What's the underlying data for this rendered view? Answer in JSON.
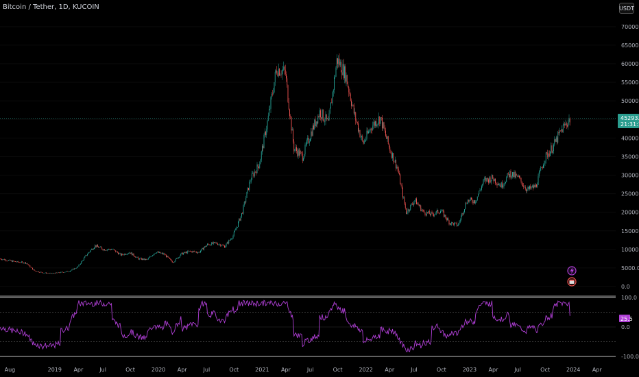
{
  "header": {
    "title": "Bitcoin / Tether, 1D, KUCOIN",
    "currency_button": "USDT"
  },
  "price_tag": {
    "price": "45293.1",
    "countdown": "21:31:17"
  },
  "indicator_badge": "25.5",
  "icons": [
    "lightning-icon",
    "calendar-icon"
  ],
  "colors": {
    "up": "#26a69a",
    "down": "#ef5350",
    "indicator": "#b03fd6",
    "badge": "#2a9d8f"
  },
  "chart_data": [
    {
      "type": "line",
      "series_style": "candlestick",
      "title": "",
      "y_ticks": [
        0,
        5000,
        10000,
        15000,
        20000,
        25000,
        30000,
        35000,
        40000,
        45000,
        50000,
        55000,
        60000,
        65000,
        70000
      ],
      "y_tick_labels": [
        "0.0",
        "5000.0",
        "10000.0",
        "15000.0",
        "20000.0",
        "25000.0",
        "30000.0",
        "35000.0",
        "40000.0",
        "45000.0",
        "50000.0",
        "55000.0",
        "60000.0",
        "65000.0",
        "70000.0"
      ],
      "ylim": [
        0,
        72000
      ],
      "x_tick_labels": [
        "Aug",
        "2019",
        "Apr",
        "Jul",
        "Oct",
        "2020",
        "Apr",
        "Jul",
        "Oct",
        "2021",
        "Apr",
        "Jul",
        "Oct",
        "2022",
        "Apr",
        "Jul",
        "Oct",
        "2023",
        "Apr",
        "Jul",
        "Oct",
        "2024",
        "Apr"
      ],
      "x": [
        "2018-07",
        "2018-08",
        "2018-09",
        "2018-10",
        "2018-11",
        "2018-12",
        "2019-01",
        "2019-02",
        "2019-03",
        "2019-04",
        "2019-05",
        "2019-06",
        "2019-07",
        "2019-08",
        "2019-09",
        "2019-10",
        "2019-11",
        "2019-12",
        "2020-01",
        "2020-02",
        "2020-03",
        "2020-04",
        "2020-05",
        "2020-06",
        "2020-07",
        "2020-08",
        "2020-09",
        "2020-10",
        "2020-11",
        "2020-12",
        "2021-01",
        "2021-02",
        "2021-03",
        "2021-04",
        "2021-05",
        "2021-06",
        "2021-07",
        "2021-08",
        "2021-09",
        "2021-10",
        "2021-11",
        "2021-12",
        "2022-01",
        "2022-02",
        "2022-03",
        "2022-04",
        "2022-05",
        "2022-06",
        "2022-07",
        "2022-08",
        "2022-09",
        "2022-10",
        "2022-11",
        "2022-12",
        "2023-01",
        "2023-02",
        "2023-03",
        "2023-04",
        "2023-05",
        "2023-06",
        "2023-07",
        "2023-08",
        "2023-09",
        "2023-10",
        "2023-11",
        "2023-12",
        "2024-01"
      ],
      "close": [
        7500,
        7000,
        6600,
        6400,
        4200,
        3700,
        3500,
        3800,
        4100,
        5300,
        8500,
        11000,
        10000,
        10000,
        8500,
        9200,
        7500,
        7200,
        9300,
        8700,
        6500,
        8800,
        9500,
        9200,
        11300,
        11700,
        10800,
        13800,
        19700,
        29000,
        33000,
        45000,
        58800,
        57700,
        37300,
        35000,
        41500,
        47100,
        43800,
        61300,
        57000,
        46300,
        38500,
        43200,
        45500,
        37700,
        31800,
        19900,
        23300,
        20000,
        19400,
        20500,
        17200,
        16500,
        23100,
        23100,
        28500,
        29200,
        27200,
        30500,
        29200,
        26000,
        27000,
        34500,
        37700,
        42300,
        45293
      ]
    },
    {
      "type": "line",
      "title": "",
      "y_tick_labels": [
        "100.0",
        "0.0",
        "-100.0"
      ],
      "ylim": [
        -100,
        100
      ],
      "levels": [
        100,
        50,
        0,
        -50,
        -100
      ],
      "current_value": 25.5
    }
  ]
}
